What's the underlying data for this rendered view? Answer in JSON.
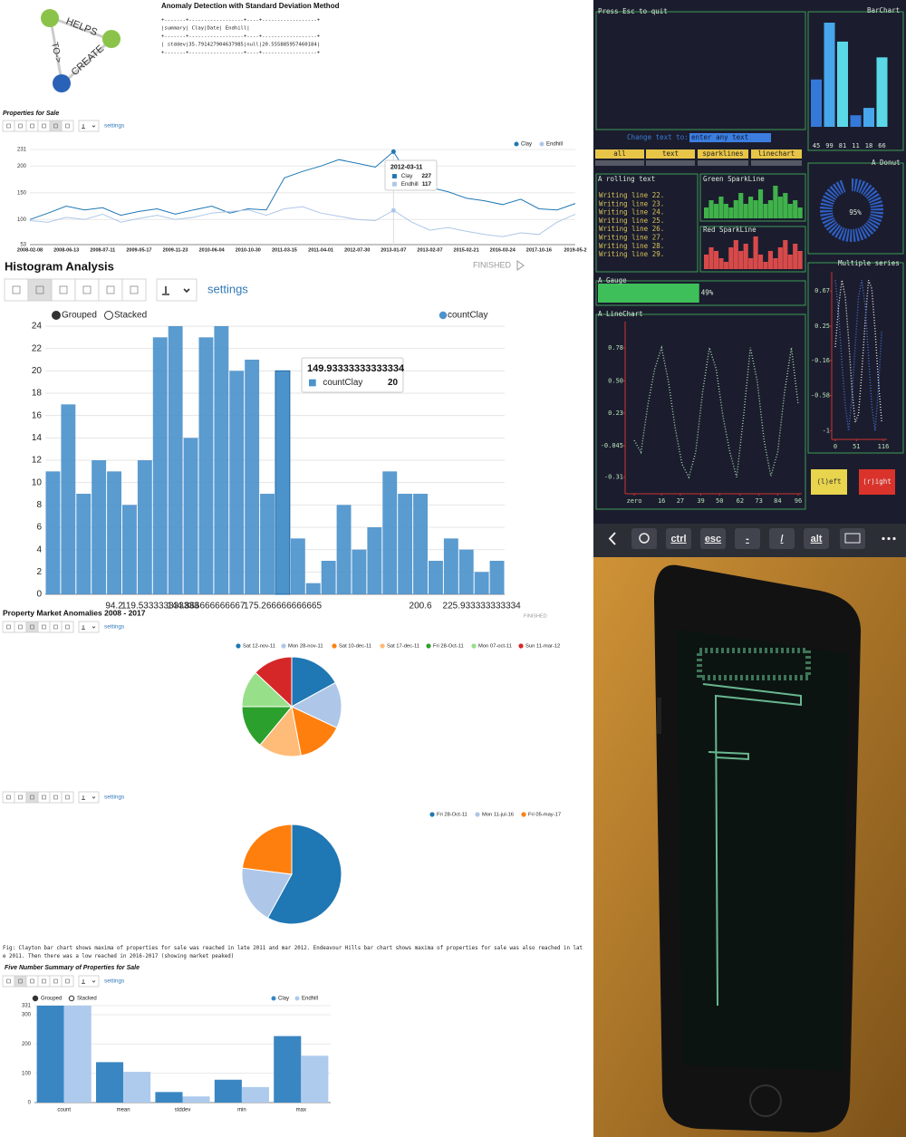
{
  "diagram": {
    "edges": [
      "HELPS",
      "TO->",
      "CREATE"
    ]
  },
  "anomaly": {
    "title": "Anomaly Detection with Standard Deviation Method",
    "lines": [
      "+-------+------------------+----+------------------+",
      "|summary|              Clay|Date|           Endhill|",
      "+-------+------------------+----+------------------+",
      "| stddev|35.791427904637985|null|20.555885957460184|",
      "+-------+------------------+----+------------------+"
    ]
  },
  "ui": {
    "settings": "settings",
    "finished": "FINISHED"
  },
  "chart_data": [
    {
      "type": "line",
      "title": "Properties for Sale",
      "categories": [
        "2008-02-08",
        null,
        "2008-06-13",
        null,
        "2008-07-11",
        null,
        "2009-05-17",
        null,
        "2009-11-23",
        null,
        "2010-06-04",
        null,
        "2010-10-30",
        null,
        "2011-03-15",
        null,
        "2011-04-01",
        null,
        "2012-07-30",
        null,
        "2013-01-07",
        null,
        "2013-02-07",
        null,
        "2015-02-21",
        null,
        "2016-03-24",
        null,
        "2017-10-16",
        null,
        "2019-05-2"
      ],
      "series": [
        {
          "name": "Clay",
          "color": "#1f77b4",
          "values": [
            100,
            112,
            125,
            118,
            122,
            108,
            115,
            120,
            110,
            118,
            125,
            112,
            120,
            118,
            178,
            190,
            200,
            212,
            205,
            198,
            227,
            172,
            160,
            152,
            140,
            135,
            128,
            138,
            120,
            118,
            130
          ]
        },
        {
          "name": "Endhill",
          "color": "#aec7e8",
          "values": [
            98,
            95,
            104,
            100,
            110,
            95,
            102,
            108,
            100,
            104,
            112,
            115,
            118,
            108,
            120,
            124,
            112,
            106,
            100,
            98,
            117,
            95,
            80,
            85,
            78,
            72,
            68,
            75,
            72,
            95,
            110
          ]
        }
      ],
      "ylim": [
        53,
        231
      ],
      "yticks": [
        53,
        100,
        150,
        200,
        231
      ],
      "grid": true,
      "tooltip": {
        "title": "2012-03-11",
        "values": [
          227,
          117
        ]
      }
    },
    {
      "type": "bar",
      "title": "Histogram Analysis",
      "modes": [
        "Grouped",
        "Stacked"
      ],
      "categories": [
        null,
        null,
        null,
        null,
        "94.2",
        null,
        null,
        "119.533333333333",
        null,
        null,
        "144.866666666667",
        null,
        null,
        null,
        null,
        "175.266666666665",
        null,
        null,
        null,
        null,
        null,
        null,
        null,
        null,
        "200.6",
        null,
        null,
        null,
        "225.933333333334",
        null
      ],
      "series": [
        {
          "name": "countClay",
          "color": "#4c93cc",
          "values": [
            11,
            17,
            9,
            12,
            11,
            8,
            12,
            23,
            24,
            14,
            23,
            24,
            20,
            21,
            9,
            20,
            5,
            1,
            3,
            8,
            4,
            6,
            11,
            9,
            9,
            3,
            5,
            4,
            2,
            3
          ]
        }
      ],
      "ylim": [
        0,
        24
      ],
      "yticks": [
        0,
        2,
        4,
        6,
        8,
        10,
        12,
        14,
        16,
        18,
        20,
        22,
        24
      ],
      "grid": true,
      "tooltip": {
        "title": "149.93333333333334",
        "values": [
          20
        ]
      }
    },
    {
      "type": "pie",
      "title": "Property Market Anomalies 2008 - 2017",
      "categories": [
        "Sat 12-nov-11",
        "Mon 28-nov-11",
        "Sat 10-dec-11",
        "Sat 17-dec-11",
        "Fri 28-Oct-11",
        "Mon 07-oct-11",
        "Sun 11-mar-12"
      ],
      "colors": [
        "#1f77b4",
        "#aec7e8",
        "#ff7f0e",
        "#ffbb78",
        "#2ca02c",
        "#98df8a",
        "#d62728"
      ],
      "values": [
        17,
        15,
        15,
        14,
        14,
        12,
        13
      ]
    },
    {
      "type": "pie",
      "categories": [
        "Fri 28-Oct-11",
        "Mon 11-jul-16",
        "Fri 05-may-17"
      ],
      "colors": [
        "#1f77b4",
        "#aec7e8",
        "#ff7f0e"
      ],
      "values": [
        58,
        19,
        23
      ]
    },
    {
      "type": "bar",
      "title": "Five Number Summary of Properties for Sale",
      "modes": [
        "Grouped",
        "Stacked"
      ],
      "categories": [
        "count",
        "mean",
        "stddev",
        "min",
        "max"
      ],
      "series": [
        {
          "name": "Clay",
          "color": "#3a86c2",
          "values": [
            331,
            138,
            36,
            78,
            227
          ]
        },
        {
          "name": "Endhill",
          "color": "#aecbee",
          "values": [
            331,
            105,
            21,
            53,
            160
          ]
        }
      ],
      "ylim": [
        0,
        331
      ],
      "yticks": [
        0,
        100,
        200,
        300,
        331
      ],
      "grid": true
    },
    {
      "type": "bar",
      "title": "BarChart",
      "values": [
        45,
        99,
        81,
        11,
        18,
        66
      ],
      "colors": [
        "#3478d8",
        "#47a6ec",
        "#5ad8e8",
        "#3478d8",
        "#47a6ec",
        "#5ad8e8"
      ]
    },
    {
      "type": "sparkline",
      "title": "Green SparkLine",
      "color": "#3fb24a",
      "values": [
        3,
        5,
        4,
        6,
        4,
        3,
        5,
        7,
        4,
        6,
        5,
        8,
        4,
        5,
        9,
        6,
        7,
        4,
        5,
        3
      ]
    },
    {
      "type": "sparkline",
      "title": "Red SparkLine",
      "color": "#d84a4a",
      "values": [
        4,
        6,
        5,
        3,
        2,
        6,
        8,
        5,
        7,
        3,
        9,
        4,
        2,
        5,
        3,
        6,
        8,
        4,
        7,
        5
      ]
    },
    {
      "type": "donut",
      "title": "A Donut",
      "color": "#2f5fc4",
      "values": [
        95
      ],
      "value_labels": [
        "95%"
      ]
    },
    {
      "type": "gauge",
      "title": "A Gauge",
      "color": "#3fbf5a",
      "values": [
        49
      ],
      "value_labels": [
        "49%"
      ]
    },
    {
      "type": "line",
      "title": "A LineChart",
      "x": [
        0,
        4,
        8,
        12,
        16,
        20,
        24,
        28,
        32,
        36,
        40,
        44,
        48,
        52,
        56,
        60,
        64,
        68,
        72,
        76,
        80,
        84,
        88,
        92,
        96
      ],
      "series": [
        {
          "color": "#a8d8b0",
          "values": [
            0,
            -0.1,
            0.3,
            0.6,
            0.78,
            0.5,
            0.1,
            -0.2,
            -0.31,
            -0.1,
            0.4,
            0.78,
            0.6,
            0.2,
            -0.1,
            -0.31,
            0.2,
            0.78,
            0.5,
            0,
            -0.3,
            -0.1,
            0.4,
            0.78,
            0.3
          ]
        }
      ],
      "xlim": [
        0,
        96
      ],
      "xticks": [
        {
          "value": 0,
          "label": "zero"
        },
        16,
        27,
        39,
        50,
        62,
        73,
        84,
        96
      ],
      "ylim": [
        -0.45,
        1.0
      ],
      "yticks": [
        0.78,
        {
          "value": 0.5,
          "label": "0.50"
        },
        0.23,
        -0.045,
        -0.31
      ]
    },
    {
      "type": "line",
      "title": "Multiple series",
      "x": [
        0,
        8,
        16,
        24,
        32,
        40,
        48,
        56,
        64,
        72,
        80,
        88,
        96,
        104,
        112
      ],
      "series": [
        {
          "color": "#e8e8e8",
          "values": [
            0,
            0.5,
            0.8,
            0.6,
            0.1,
            -0.5,
            -0.9,
            -0.8,
            -0.3,
            0.3,
            0.8,
            0.7,
            0.2,
            -0.4,
            -0.9
          ]
        },
        {
          "color": "#4a6fd8",
          "values": [
            0.8,
            0.4,
            -0.2,
            -0.7,
            -1,
            -0.6,
            0,
            0.6,
            0.8,
            0.5,
            -0.1,
            -0.7,
            -1,
            -0.5,
            0.2
          ]
        }
      ],
      "xlim": [
        0,
        116
      ],
      "xticks": [
        0,
        51,
        116
      ],
      "ylim": [
        -1.05,
        0.9
      ],
      "yticks": [
        0.67,
        0.25,
        -0.16,
        -0.58,
        -1
      ]
    }
  ],
  "caption": [
    "Fig: Clayton bar chart shows maxima of properties for sale was reached in late 2011 and mar 2012. Endeavour Hills bar chart shows maxima of properties for sale was also reached in lat",
    "e 2011. Then there was a low reached in 2016-2017 (showing market peaked)"
  ],
  "terminal": {
    "quit": "Press Esc to quit",
    "change_label": "Change text to:",
    "input": "enter any text",
    "buttons": [
      "all",
      "text",
      "sparklines",
      "linechart"
    ],
    "rolling_title": "A rolling text",
    "rolling_lines": [
      "Writing line 22.",
      "Writing line 23.",
      "Writing line 24.",
      "Writing line 25.",
      "Writing line 26.",
      "Writing line 27.",
      "Writing line 28.",
      "Writing line 29."
    ],
    "left": "(l)eft",
    "right": "(r)ight"
  },
  "keyboard": [
    "ctrl",
    "esc",
    "-",
    "/",
    "alt"
  ]
}
